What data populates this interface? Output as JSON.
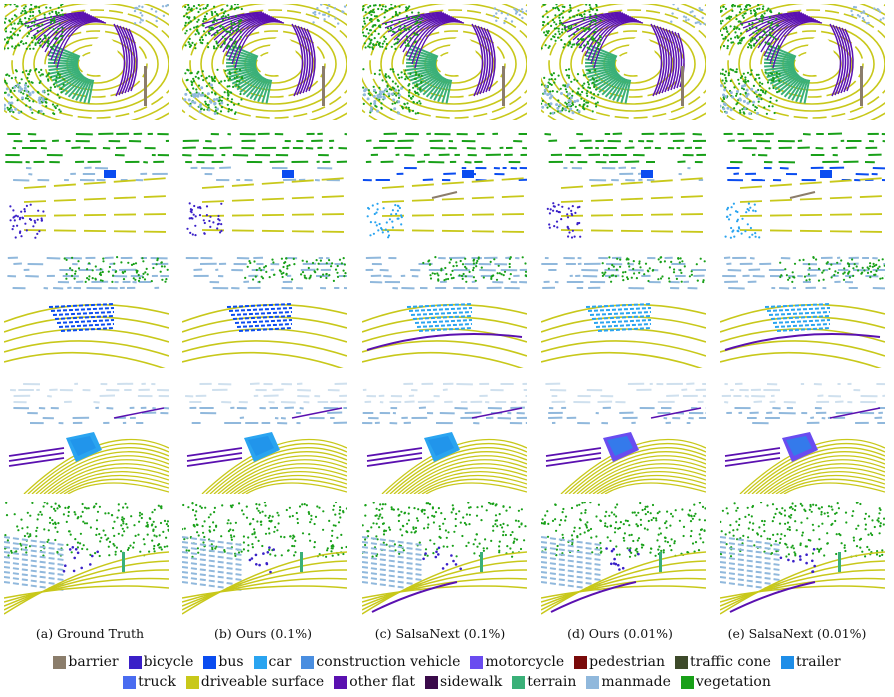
{
  "colors": {
    "barrier": "#8b7d6b",
    "bicycle": "#3a20c8",
    "bus": "#0a4cf0",
    "car": "#2aa4f0",
    "construction_vehicle": "#4a8ee0",
    "motorcycle": "#6a4cf0",
    "pedestrian": "#7a0a0a",
    "traffic_cone": "#3d4a2a",
    "trailer": "#1e8ee8",
    "truck": "#4a6cf0",
    "driveable_surface": "#c8c81a",
    "other_flat": "#5a10b0",
    "sidewalk": "#3a0a4a",
    "terrain": "#3ab078",
    "manmade": "#90b8dc",
    "vegetation": "#18a018"
  },
  "captions": [
    "(a) Ground Truth",
    "(b) Ours (0.1%)",
    "(c) SalsaNext (0.1%)",
    "(d) Ours (0.01%)",
    "(e) SalsaNext (0.01%)"
  ],
  "legend": [
    [
      {
        "label": "barrier",
        "color": "#8b7d6b"
      },
      {
        "label": "bicycle",
        "color": "#3a20c8"
      },
      {
        "label": "bus",
        "color": "#0a4cf0"
      },
      {
        "label": "car",
        "color": "#2aa4f0"
      },
      {
        "label": "construction vehicle",
        "color": "#4a8ee0"
      },
      {
        "label": "motorcycle",
        "color": "#6a4cf0"
      },
      {
        "label": "pedestrian",
        "color": "#7a0a0a"
      },
      {
        "label": "traffic cone",
        "color": "#3d4a2a"
      },
      {
        "label": "trailer",
        "color": "#1e8ee8"
      }
    ],
    [
      {
        "label": "truck",
        "color": "#4a6cf0"
      },
      {
        "label": "driveable surface",
        "color": "#c8c81a"
      },
      {
        "label": "other flat",
        "color": "#5a10b0"
      },
      {
        "label": "sidewalk",
        "color": "#3a0a4a"
      },
      {
        "label": "terrain",
        "color": "#3ab078"
      },
      {
        "label": "manmade",
        "color": "#90b8dc"
      },
      {
        "label": "vegetation",
        "color": "#18a018"
      }
    ]
  ]
}
